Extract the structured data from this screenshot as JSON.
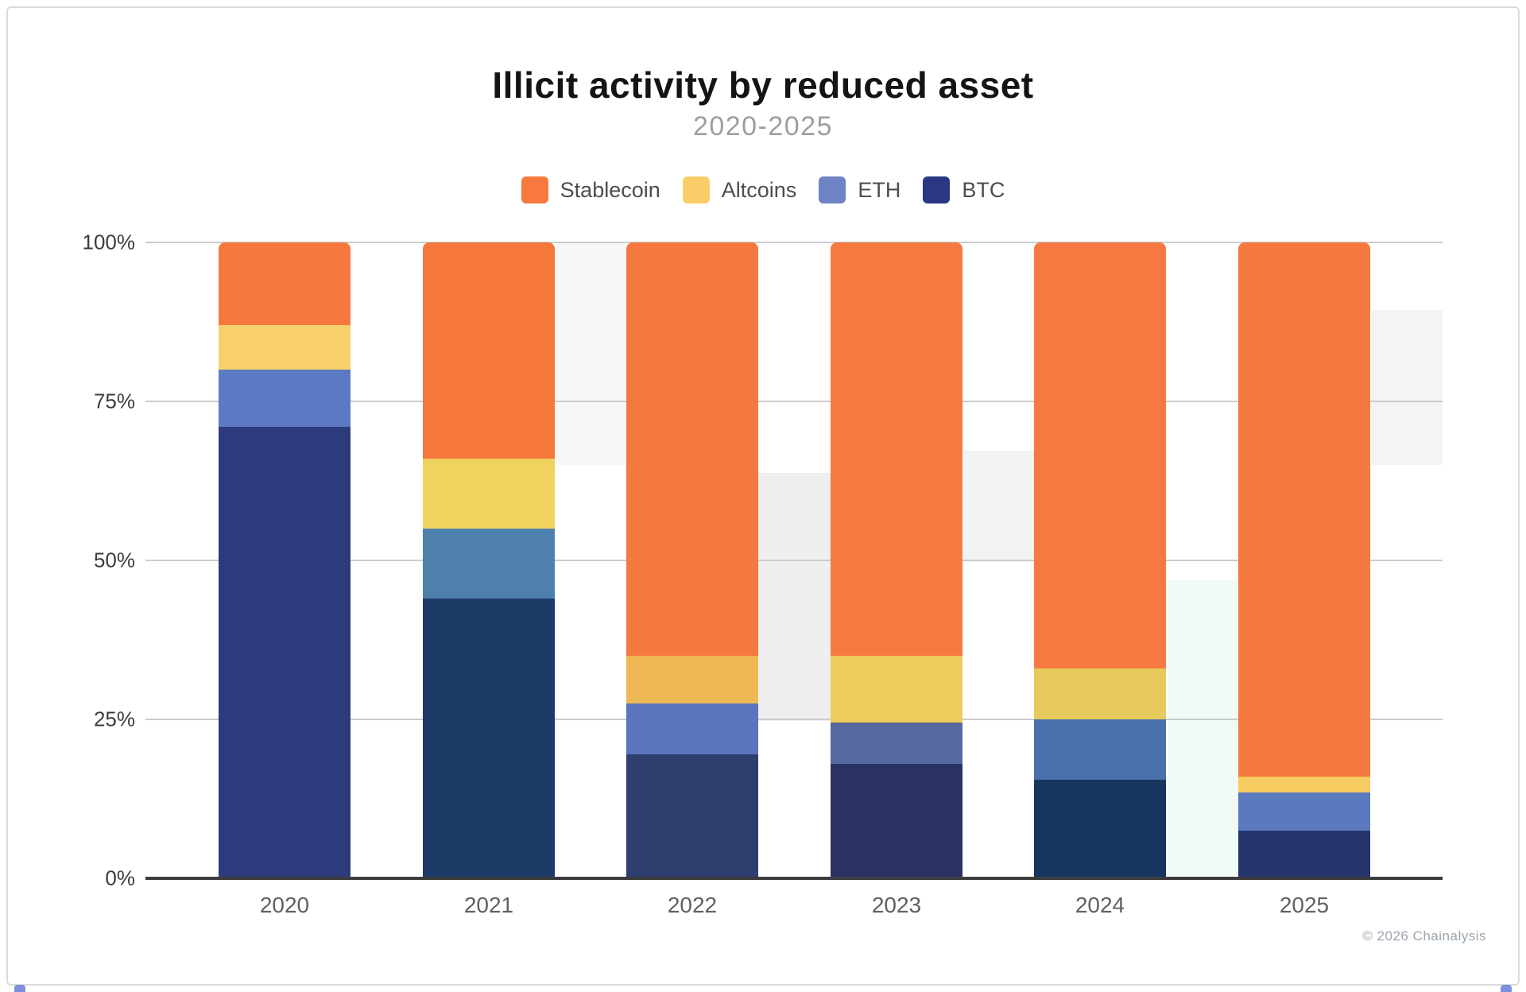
{
  "page": {
    "copyright": "© 2026 Chainalysis"
  },
  "chart_data": {
    "type": "bar",
    "stacked": true,
    "percent_stacked": true,
    "title": "Illicit activity by reduced asset",
    "subtitle": "2020-2025",
    "categories": [
      "2020",
      "2021",
      "2022",
      "2023",
      "2024",
      "2025"
    ],
    "y_tick_labels_top_to_bottom": [
      "100%",
      "75%",
      "50%",
      "25%",
      "0%"
    ],
    "y_tick_values_top_to_bottom": [
      100,
      75,
      50,
      25,
      0
    ],
    "ylim": [
      0,
      100
    ],
    "grid": "horizontal",
    "legend_position": "top",
    "stack_order_bottom_to_top": [
      "BTC",
      "ETH",
      "Altcoins",
      "Stablecoin"
    ],
    "series": [
      {
        "name": "Stablecoin",
        "legend_color": "#f7793f",
        "values": [
          13,
          34,
          65,
          65,
          67,
          84
        ],
        "colors": [
          "#f5793f",
          "#f5773c",
          "#f5793f",
          "#f57a40",
          "#f57940",
          "#f5793f"
        ]
      },
      {
        "name": "Altcoins",
        "legend_color": "#f9ce68",
        "values": [
          7,
          11,
          7.5,
          10.5,
          8,
          2.5
        ],
        "colors": [
          "#f8d06b",
          "#f0d35f",
          "#eeb954",
          "#eecb5c",
          "#e7c95e",
          "#f6cb5f"
        ]
      },
      {
        "name": "ETH",
        "legend_color": "#6d83c4",
        "values": [
          9,
          11,
          8,
          6.5,
          9.5,
          6
        ],
        "colors": [
          "#5c7ac4",
          "#4e80ae",
          "#5c74bc",
          "#56699e",
          "#4a71ac",
          "#5b79be"
        ]
      },
      {
        "name": "BTC",
        "legend_color": "#2b3784",
        "values": [
          71,
          44,
          19.5,
          18,
          15.5,
          7.5
        ],
        "colors": [
          "#2d3b7d",
          "#1e3a66",
          "#2e3e6f",
          "#2a3263",
          "#17365f",
          "#24356e"
        ]
      }
    ]
  }
}
